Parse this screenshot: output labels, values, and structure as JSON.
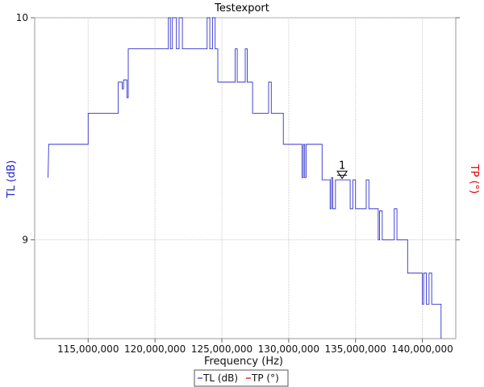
{
  "chart_data": {
    "type": "line",
    "title": "Testexport",
    "xlabel": "Frequency (Hz)",
    "ylabel_left": "TL (dB)",
    "ylabel_right": "TP (°)",
    "xlim": [
      111000000,
      142500000
    ],
    "ylim": [
      8.555,
      10.0
    ],
    "x_ticks": [
      115000000,
      120000000,
      125000000,
      130000000,
      135000000,
      140000000
    ],
    "x_tick_labels": [
      "115,000,000",
      "120,000,000",
      "125,000,000",
      "130,000,000",
      "135,000,000",
      "140,000,000"
    ],
    "y_ticks": [
      9,
      10
    ],
    "y_tick_labels": [
      "9",
      "10"
    ],
    "grid": true,
    "legend_position": "bottom-center",
    "colors": {
      "TL": "#3333cc",
      "TP": "#dd0000"
    },
    "series": [
      {
        "name": "TL (dB)",
        "color": "#3333cc",
        "points": [
          [
            112000000,
            9.28
          ],
          [
            112050000,
            9.43
          ],
          [
            115000000,
            9.43
          ],
          [
            115000000,
            9.57
          ],
          [
            117250000,
            9.57
          ],
          [
            117250000,
            9.71
          ],
          [
            117550000,
            9.71
          ],
          [
            117550000,
            9.68
          ],
          [
            117650000,
            9.68
          ],
          [
            117650000,
            9.72
          ],
          [
            117900000,
            9.72
          ],
          [
            117900000,
            9.64
          ],
          [
            118000000,
            9.64
          ],
          [
            118000000,
            9.86
          ],
          [
            121000000,
            9.86
          ],
          [
            121000000,
            10.0
          ],
          [
            121150000,
            10.0
          ],
          [
            121150000,
            9.86
          ],
          [
            121300000,
            9.86
          ],
          [
            121300000,
            10.0
          ],
          [
            121600000,
            10.0
          ],
          [
            121600000,
            9.86
          ],
          [
            121800000,
            9.86
          ],
          [
            121800000,
            10.0
          ],
          [
            122050000,
            10.0
          ],
          [
            122050000,
            9.86
          ],
          [
            123900000,
            9.86
          ],
          [
            123900000,
            10.0
          ],
          [
            124100000,
            10.0
          ],
          [
            124100000,
            9.86
          ],
          [
            124300000,
            9.86
          ],
          [
            124300000,
            10.0
          ],
          [
            124500000,
            10.0
          ],
          [
            124500000,
            9.86
          ],
          [
            124700000,
            9.86
          ],
          [
            124700000,
            9.71
          ],
          [
            126000000,
            9.71
          ],
          [
            126000000,
            9.86
          ],
          [
            126150000,
            9.86
          ],
          [
            126150000,
            9.71
          ],
          [
            126750000,
            9.71
          ],
          [
            126750000,
            9.86
          ],
          [
            126900000,
            9.86
          ],
          [
            126900000,
            9.71
          ],
          [
            127300000,
            9.71
          ],
          [
            127300000,
            9.57
          ],
          [
            128500000,
            9.57
          ],
          [
            128500000,
            9.71
          ],
          [
            128700000,
            9.71
          ],
          [
            128700000,
            9.57
          ],
          [
            129600000,
            9.57
          ],
          [
            129600000,
            9.43
          ],
          [
            131000000,
            9.43
          ],
          [
            131000000,
            9.28
          ],
          [
            131100000,
            9.28
          ],
          [
            131100000,
            9.43
          ],
          [
            131200000,
            9.43
          ],
          [
            131200000,
            9.28
          ],
          [
            131300000,
            9.28
          ],
          [
            131300000,
            9.43
          ],
          [
            132500000,
            9.43
          ],
          [
            132500000,
            9.27
          ],
          [
            133100000,
            9.27
          ],
          [
            133100000,
            9.14
          ],
          [
            133200000,
            9.14
          ],
          [
            133200000,
            9.28
          ],
          [
            133300000,
            9.28
          ],
          [
            133300000,
            9.14
          ],
          [
            133500000,
            9.14
          ],
          [
            133500000,
            9.27
          ],
          [
            134600000,
            9.27
          ],
          [
            134600000,
            9.14
          ],
          [
            134800000,
            9.14
          ],
          [
            134800000,
            9.27
          ],
          [
            135000000,
            9.27
          ],
          [
            135000000,
            9.14
          ],
          [
            135800000,
            9.14
          ],
          [
            135800000,
            9.27
          ],
          [
            136000000,
            9.27
          ],
          [
            136000000,
            9.14
          ],
          [
            136700000,
            9.14
          ],
          [
            136700000,
            9.0
          ],
          [
            136800000,
            9.0
          ],
          [
            136800000,
            9.13
          ],
          [
            137000000,
            9.13
          ],
          [
            137000000,
            9.0
          ],
          [
            137900000,
            9.0
          ],
          [
            137900000,
            9.14
          ],
          [
            138100000,
            9.14
          ],
          [
            138100000,
            9.0
          ],
          [
            138900000,
            9.0
          ],
          [
            138900000,
            8.85
          ],
          [
            140000000,
            8.85
          ],
          [
            140000000,
            8.71
          ],
          [
            140100000,
            8.71
          ],
          [
            140100000,
            8.85
          ],
          [
            140300000,
            8.85
          ],
          [
            140300000,
            8.71
          ],
          [
            140500000,
            8.71
          ],
          [
            140500000,
            8.85
          ],
          [
            140700000,
            8.85
          ],
          [
            140700000,
            8.71
          ],
          [
            141400000,
            8.71
          ],
          [
            141400000,
            8.555
          ]
        ]
      },
      {
        "name": "TP (°)",
        "color": "#dd0000",
        "points": []
      }
    ],
    "markers": [
      {
        "label": "1",
        "x": 134000000,
        "y": 9.28
      }
    ]
  }
}
